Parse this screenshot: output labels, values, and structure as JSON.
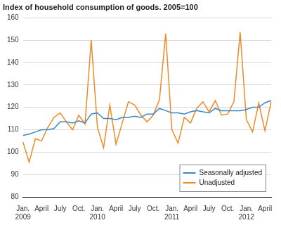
{
  "chart_data": {
    "type": "line",
    "title": "Index of household consumption of goods. 2005=100",
    "categories": [
      "Jan. 2009",
      null,
      null,
      "April",
      null,
      null,
      "July",
      null,
      null,
      "Oct.",
      null,
      null,
      "Jan. 2010",
      null,
      null,
      "April",
      null,
      null,
      "July",
      null,
      null,
      "Oct.",
      null,
      null,
      "Jan. 2011",
      null,
      null,
      "April",
      null,
      null,
      "July",
      null,
      null,
      "Oct.",
      null,
      null,
      "Jan. 2012",
      null,
      null,
      "April",
      null
    ],
    "series": [
      {
        "name": "Seasonally adjusted",
        "color": "#3a87c8",
        "values": [
          107.5,
          108,
          109,
          110,
          110,
          110.5,
          113.5,
          113.5,
          113,
          114,
          113,
          117,
          117.5,
          115,
          115,
          114.5,
          115.5,
          115.5,
          116,
          115.5,
          117,
          117,
          119.5,
          118.5,
          117.5,
          117.5,
          117,
          118,
          118.5,
          118,
          117.5,
          119.5,
          118.5,
          118.5,
          118.5,
          118.5,
          119,
          120,
          120,
          122,
          123
        ]
      },
      {
        "name": "Unadjusted",
        "color": "#f08a24",
        "values": [
          104.5,
          95.5,
          106,
          105,
          111,
          115.5,
          117.5,
          113.5,
          110,
          116.5,
          112.5,
          150,
          111,
          102,
          121,
          103.5,
          113,
          122.5,
          121,
          116.5,
          113.5,
          116.5,
          123.5,
          153,
          110,
          104,
          115.5,
          113,
          119.5,
          122.5,
          118,
          123,
          116.5,
          117,
          122.5,
          153.5,
          114.5,
          109,
          122,
          109.5,
          122.5
        ]
      }
    ],
    "ylim": [
      80,
      160
    ],
    "yticks": [
      80,
      90,
      100,
      110,
      120,
      130,
      140,
      150,
      160
    ],
    "grid": true,
    "legend": "lower right"
  }
}
